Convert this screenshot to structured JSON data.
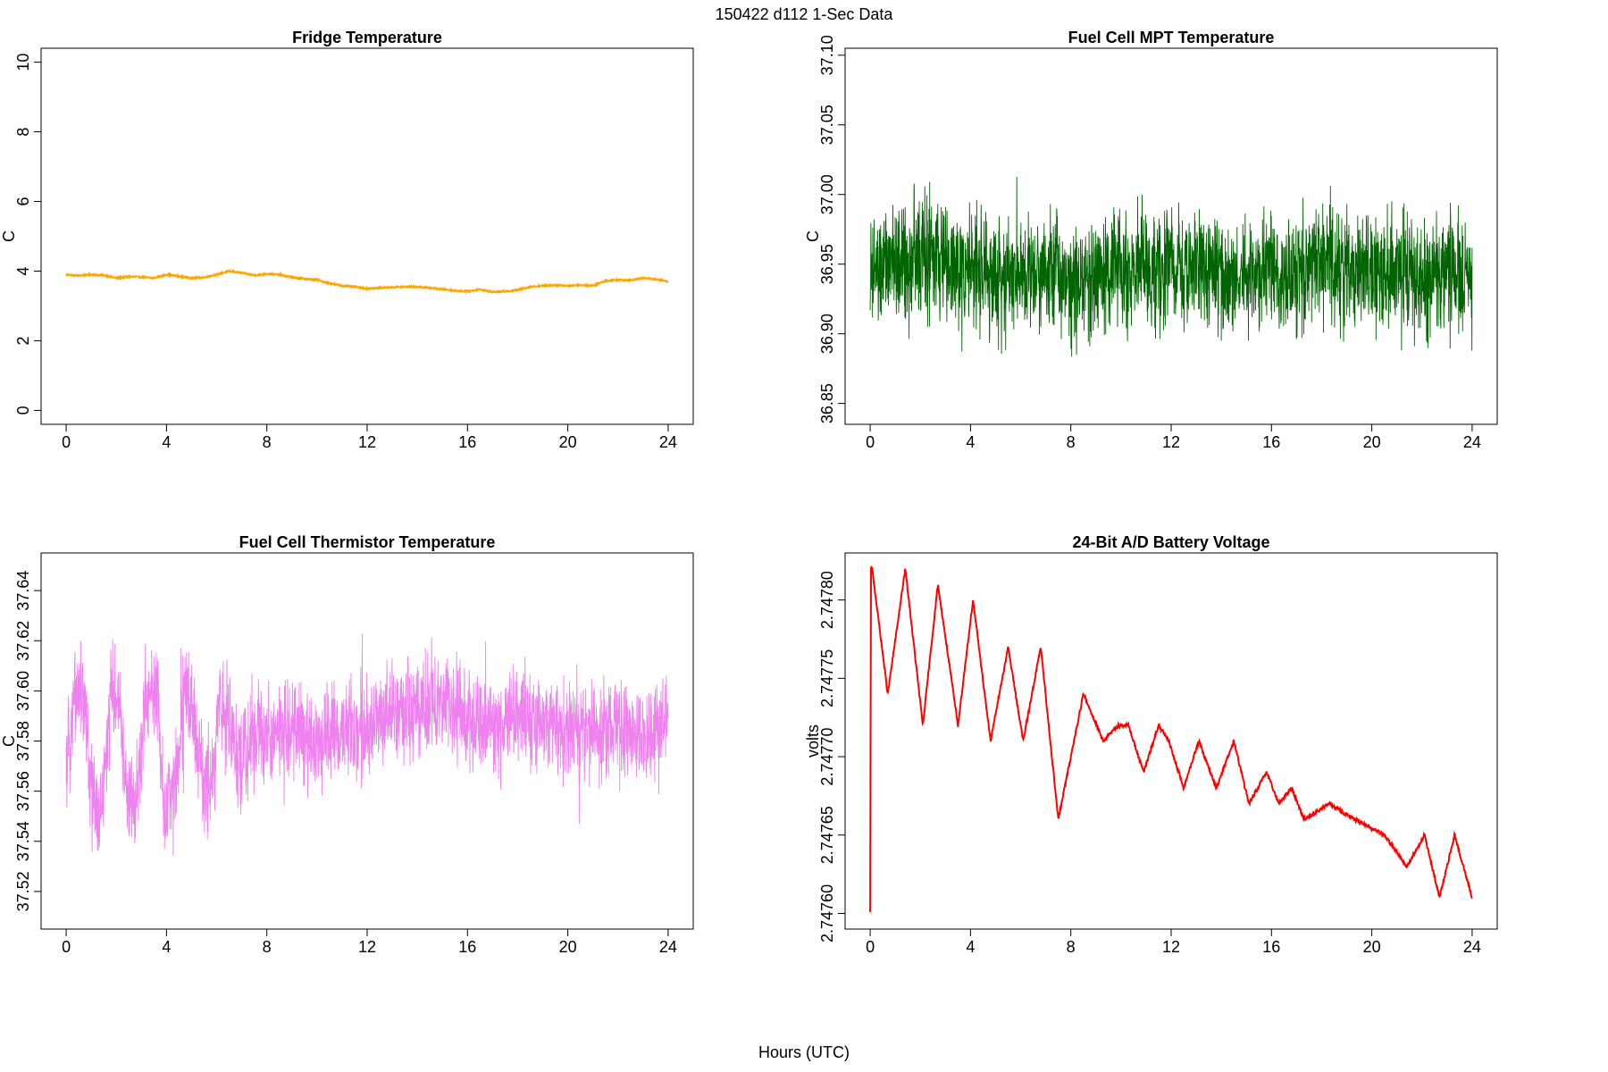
{
  "figure": {
    "title": "150422   d112   1-Sec Data",
    "xlabel": "Hours (UTC)"
  },
  "chart_data": [
    {
      "type": "line",
      "title": "Fridge Temperature",
      "xlabel": "",
      "ylabel": "C",
      "xlim": [
        -1,
        25
      ],
      "ylim": [
        -0.4,
        10.4
      ],
      "xticks": [
        0,
        4,
        8,
        12,
        16,
        20,
        24
      ],
      "xtick_labels": [
        "0",
        "4",
        "8",
        "12",
        "16",
        "20",
        "24"
      ],
      "yticks": [
        0,
        2,
        4,
        6,
        8,
        10
      ],
      "ytick_labels": [
        "0",
        "2",
        "4",
        "6",
        "8",
        "10"
      ],
      "color": "#FFA500",
      "noise": 0.02,
      "noise_style": "band",
      "x": [
        0,
        0.5,
        1,
        1.5,
        2,
        2.5,
        3,
        3.5,
        4,
        4.5,
        5,
        5.5,
        6,
        6.5,
        7,
        7.5,
        8,
        8.5,
        9,
        9.5,
        10,
        10.5,
        11,
        11.5,
        12,
        12.5,
        13,
        13.5,
        14,
        14.5,
        15,
        15.5,
        16,
        16.5,
        17,
        17.5,
        18,
        18.5,
        19,
        19.5,
        20,
        20.5,
        21,
        21.5,
        22,
        22.5,
        23,
        23.5,
        24
      ],
      "y": [
        3.9,
        3.87,
        3.9,
        3.88,
        3.8,
        3.84,
        3.83,
        3.8,
        3.9,
        3.85,
        3.8,
        3.82,
        3.9,
        4.0,
        3.95,
        3.88,
        3.92,
        3.9,
        3.82,
        3.78,
        3.75,
        3.65,
        3.58,
        3.55,
        3.5,
        3.52,
        3.54,
        3.55,
        3.55,
        3.52,
        3.48,
        3.44,
        3.42,
        3.47,
        3.4,
        3.42,
        3.46,
        3.55,
        3.58,
        3.6,
        3.58,
        3.6,
        3.58,
        3.72,
        3.75,
        3.74,
        3.8,
        3.77,
        3.7
      ]
    },
    {
      "type": "line",
      "title": "Fuel Cell MPT Temperature",
      "xlabel": "",
      "ylabel": "C",
      "xlim": [
        -1,
        25
      ],
      "ylim": [
        36.835,
        37.105
      ],
      "xticks": [
        0,
        4,
        8,
        12,
        16,
        20,
        24
      ],
      "xtick_labels": [
        "0",
        "4",
        "8",
        "12",
        "16",
        "20",
        "24"
      ],
      "yticks": [
        36.85,
        36.9,
        36.95,
        37.0,
        37.05,
        37.1
      ],
      "ytick_labels": [
        "36.85",
        "36.90",
        "36.95",
        "37.00",
        "37.05",
        "37.10"
      ],
      "color": "#006400",
      "noise": 0.06,
      "noise_style": "spiky",
      "x": [
        0,
        1,
        2,
        3,
        4,
        5,
        6,
        7,
        8,
        9,
        10,
        11,
        12,
        13,
        14,
        15,
        16,
        17,
        18,
        19,
        20,
        21,
        22,
        23,
        24
      ],
      "y": [
        36.94,
        36.95,
        36.955,
        36.95,
        36.945,
        36.94,
        36.945,
        36.95,
        36.94,
        36.94,
        36.95,
        36.945,
        36.945,
        36.95,
        36.94,
        36.94,
        36.945,
        36.94,
        36.95,
        36.945,
        36.94,
        36.945,
        36.94,
        36.945,
        36.94
      ]
    },
    {
      "type": "line",
      "title": "Fuel Cell Thermistor Temperature",
      "xlabel": "",
      "ylabel": "C",
      "xlim": [
        -1,
        25
      ],
      "ylim": [
        37.505,
        37.655
      ],
      "xticks": [
        0,
        4,
        8,
        12,
        16,
        20,
        24
      ],
      "xtick_labels": [
        "0",
        "4",
        "8",
        "12",
        "16",
        "20",
        "24"
      ],
      "yticks": [
        37.52,
        37.54,
        37.56,
        37.58,
        37.6,
        37.62,
        37.64
      ],
      "ytick_labels": [
        "37.52",
        "37.54",
        "37.56",
        "37.58",
        "37.60",
        "37.62",
        "37.64"
      ],
      "color": "#EE82EE",
      "noise": 0.028,
      "noise_style": "spiky",
      "x": [
        0,
        0.3,
        0.7,
        1.0,
        1.4,
        1.8,
        2.1,
        2.5,
        2.8,
        3.2,
        3.6,
        3.9,
        4.3,
        4.7,
        5.0,
        5.4,
        5.8,
        6.1,
        6.5,
        6.9,
        7.2,
        7.6,
        8,
        9,
        10,
        11,
        12,
        13,
        14,
        15,
        16,
        17,
        18,
        19,
        20,
        21,
        22,
        23,
        24
      ],
      "y": [
        37.565,
        37.6,
        37.6,
        37.56,
        37.55,
        37.6,
        37.595,
        37.555,
        37.555,
        37.6,
        37.6,
        37.555,
        37.56,
        37.6,
        37.595,
        37.565,
        37.56,
        37.595,
        37.59,
        37.57,
        37.575,
        37.585,
        37.58,
        37.585,
        37.58,
        37.585,
        37.585,
        37.59,
        37.59,
        37.595,
        37.59,
        37.585,
        37.59,
        37.585,
        37.585,
        37.585,
        37.585,
        37.58,
        37.59
      ]
    },
    {
      "type": "line",
      "title": "24-Bit A/D Battery Voltage",
      "xlabel": "",
      "ylabel": "volts",
      "xlim": [
        -1,
        25
      ],
      "ylim": [
        2.74759,
        2.74783
      ],
      "xticks": [
        0,
        4,
        8,
        12,
        16,
        20,
        24
      ],
      "xtick_labels": [
        "0",
        "4",
        "8",
        "12",
        "16",
        "20",
        "24"
      ],
      "yticks": [
        2.7476,
        2.74765,
        2.7477,
        2.74775,
        2.7478
      ],
      "ytick_labels": [
        "2.74760",
        "2.74765",
        "2.74770",
        "2.74775",
        "2.74780"
      ],
      "color": "#FF0000",
      "noise": 1.2e-06,
      "noise_style": "band",
      "x": [
        0,
        0.03,
        0.08,
        0.7,
        1.4,
        2.1,
        2.7,
        3.5,
        4.1,
        4.8,
        5.5,
        6.1,
        6.8,
        7.5,
        8.5,
        9.3,
        9.9,
        10.3,
        10.9,
        11.5,
        11.9,
        12.5,
        13.1,
        13.8,
        14.5,
        15.1,
        15.8,
        16.3,
        16.8,
        17.3,
        18.3,
        19.3,
        20.5,
        21.4,
        22.1,
        22.7,
        23.3,
        24
      ],
      "y": [
        2.7476,
        2.74782,
        2.74782,
        2.74774,
        2.74782,
        2.74772,
        2.74781,
        2.74772,
        2.7478,
        2.74771,
        2.74777,
        2.74771,
        2.74777,
        2.74766,
        2.74774,
        2.74771,
        2.74772,
        2.74772,
        2.74769,
        2.74772,
        2.74771,
        2.74768,
        2.74771,
        2.74768,
        2.74771,
        2.74767,
        2.74769,
        2.74767,
        2.74768,
        2.74766,
        2.74767,
        2.74766,
        2.74765,
        2.74763,
        2.74765,
        2.74761,
        2.74765,
        2.74761
      ]
    }
  ]
}
